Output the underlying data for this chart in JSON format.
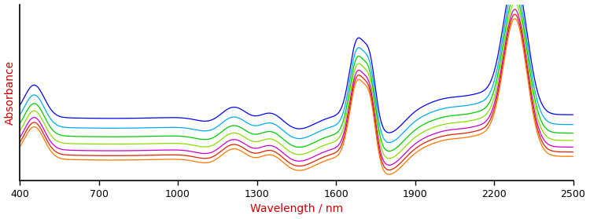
{
  "x_min": 400,
  "x_max": 2500,
  "x_ticks": [
    400,
    700,
    1000,
    1300,
    1600,
    1900,
    2200,
    2500
  ],
  "xlabel": "Wavelength / nm",
  "ylabel": "Absorbance",
  "xlabel_color": "#cc0000",
  "ylabel_color": "#cc0000",
  "colors": [
    "#0000ff",
    "#00aaee",
    "#00cc00",
    "#88dd00",
    "#cc00cc",
    "#dd2200",
    "#ff7700"
  ],
  "offsets": [
    0.17,
    0.13,
    0.095,
    0.065,
    0.038,
    0.018,
    0.0
  ],
  "ylim": [
    0.0,
    0.72
  ],
  "figsize": [
    7.5,
    2.79
  ],
  "dpi": 100
}
